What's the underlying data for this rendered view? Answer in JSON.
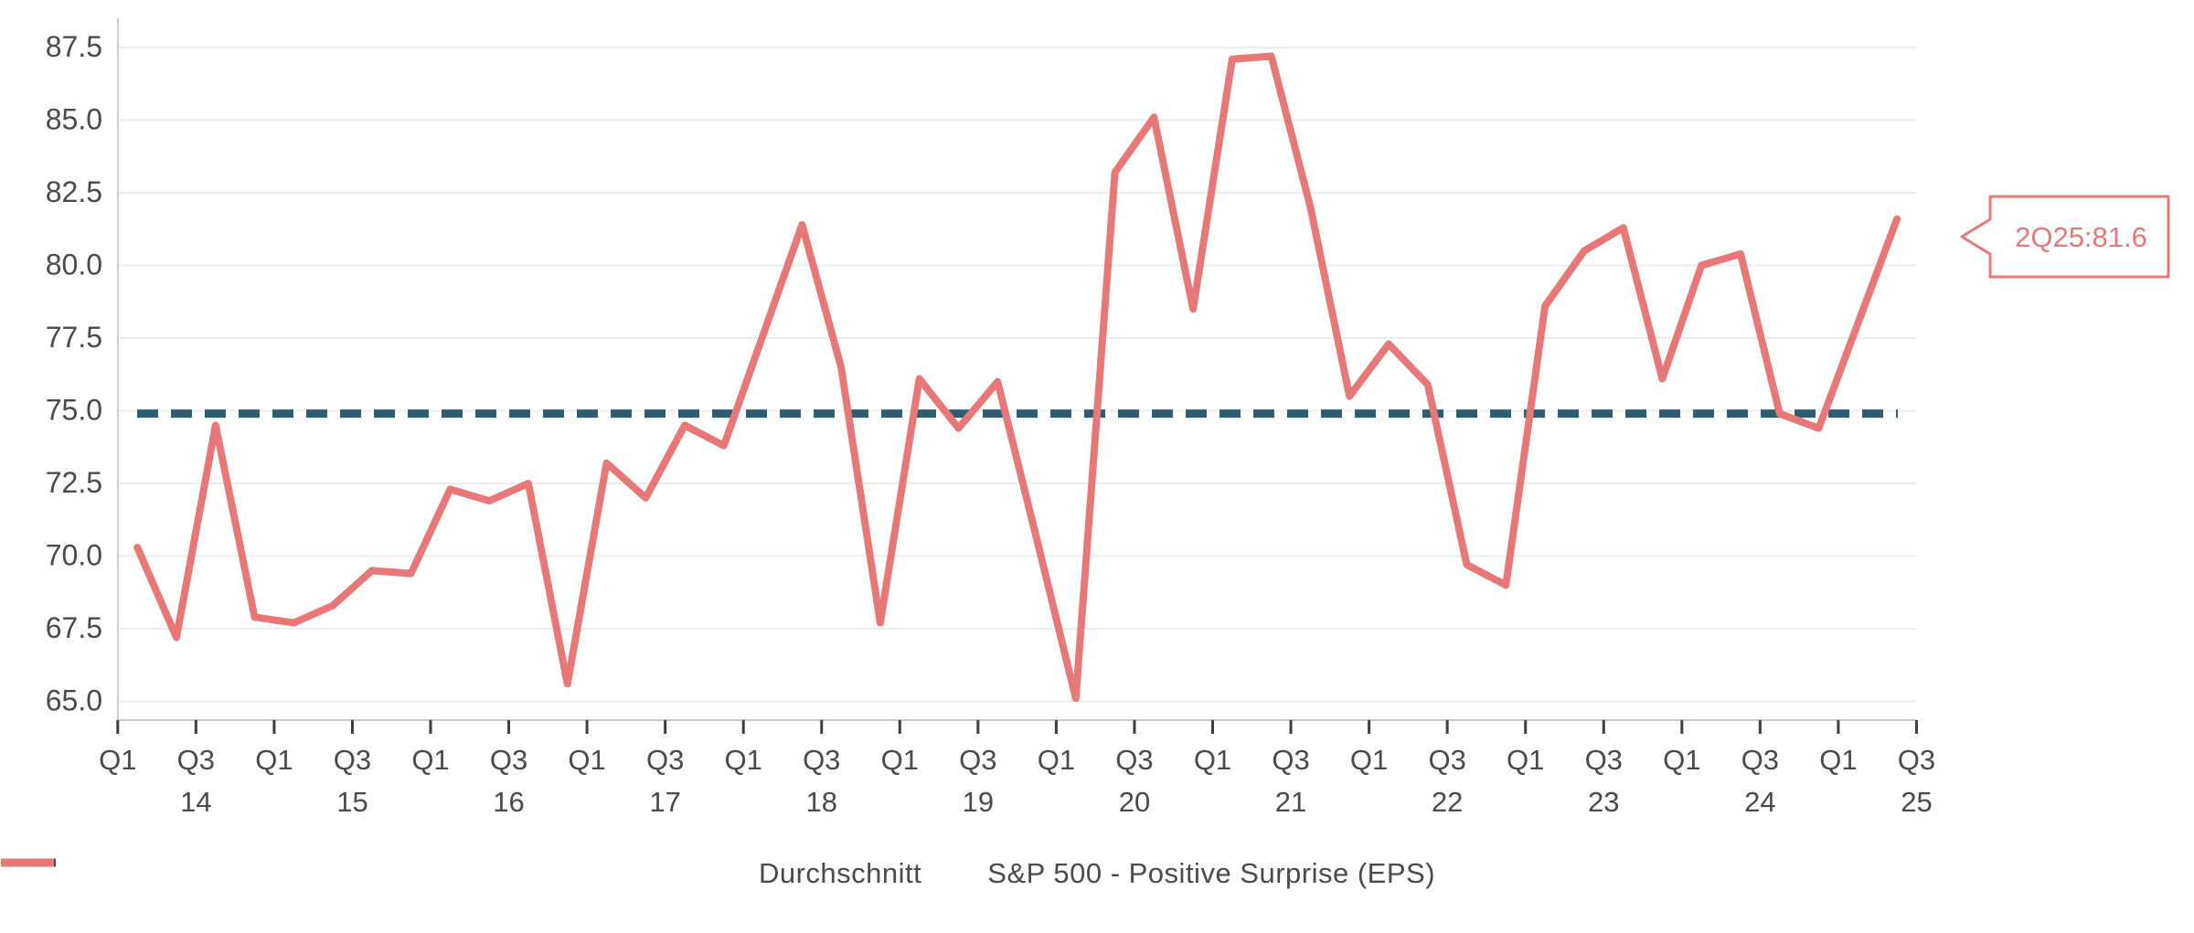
{
  "chart_data": {
    "type": "line",
    "title": "",
    "xlabel": "",
    "ylabel": "",
    "grid": true,
    "legend_position": "bottom",
    "ylim": [
      64.1,
      88.5
    ],
    "yticks": [
      "65.0",
      "67.5",
      "70.0",
      "72.5",
      "75.0",
      "77.5",
      "80.0",
      "82.5",
      "85.0",
      "87.5"
    ],
    "xticks": {
      "quarters": [
        "Q1",
        "Q3",
        "Q1",
        "Q3",
        "Q1",
        "Q3",
        "Q1",
        "Q3",
        "Q1",
        "Q3",
        "Q1",
        "Q3",
        "Q1",
        "Q3",
        "Q1",
        "Q3",
        "Q1",
        "Q3",
        "Q1",
        "Q3",
        "Q1",
        "Q3",
        "Q1",
        "Q3"
      ],
      "years": [
        "14",
        "15",
        "16",
        "17",
        "18",
        "19",
        "20",
        "21",
        "22",
        "23",
        "24",
        "25"
      ]
    },
    "x": [
      "1Q14",
      "2Q14",
      "3Q14",
      "4Q14",
      "1Q15",
      "2Q15",
      "3Q15",
      "4Q15",
      "1Q16",
      "2Q16",
      "3Q16",
      "4Q16",
      "1Q17",
      "2Q17",
      "3Q17",
      "4Q17",
      "1Q18",
      "2Q18",
      "3Q18",
      "4Q18",
      "1Q19",
      "2Q19",
      "3Q19",
      "4Q19",
      "1Q20",
      "2Q20",
      "3Q20",
      "4Q20",
      "1Q21",
      "2Q21",
      "3Q21",
      "4Q21",
      "1Q22",
      "2Q22",
      "3Q22",
      "4Q22",
      "1Q23",
      "2Q23",
      "3Q23",
      "4Q23",
      "1Q24",
      "2Q24",
      "3Q24",
      "4Q24",
      "1Q25",
      "2Q25"
    ],
    "series": [
      {
        "name": "S&P 500 - Positive Surprise (EPS)",
        "color": "#e87878",
        "style": "solid",
        "values": [
          70.3,
          67.2,
          74.5,
          67.9,
          67.7,
          68.3,
          69.5,
          69.4,
          72.3,
          71.9,
          72.5,
          65.6,
          73.2,
          72.0,
          74.5,
          73.8,
          77.6,
          81.4,
          76.5,
          67.7,
          76.1,
          74.4,
          76.0,
          70.6,
          65.1,
          83.2,
          85.1,
          78.5,
          87.1,
          87.2,
          82.0,
          75.5,
          77.3,
          75.9,
          69.7,
          69.0,
          78.6,
          80.5,
          81.3,
          76.1,
          80.0,
          80.4,
          74.9,
          74.4,
          78.0,
          81.6
        ]
      },
      {
        "name": "Durchschnitt",
        "color": "#2f5c6e",
        "style": "dashed",
        "value": 74.9
      }
    ],
    "annotation": "2Q25:81.6"
  },
  "legend": {
    "durchschnitt": "Durchschnitt",
    "sp500": "S&P 500 - Positive Surprise (EPS)"
  },
  "callout": {
    "label": "2Q25:81.6"
  },
  "colors": {
    "line": "#e87878",
    "average": "#2f5c6e",
    "grid": "#ededed",
    "axis": "#cccccc",
    "tick": "#3f3f3f",
    "text": "#4a4a4a",
    "background": "#ffffff"
  }
}
